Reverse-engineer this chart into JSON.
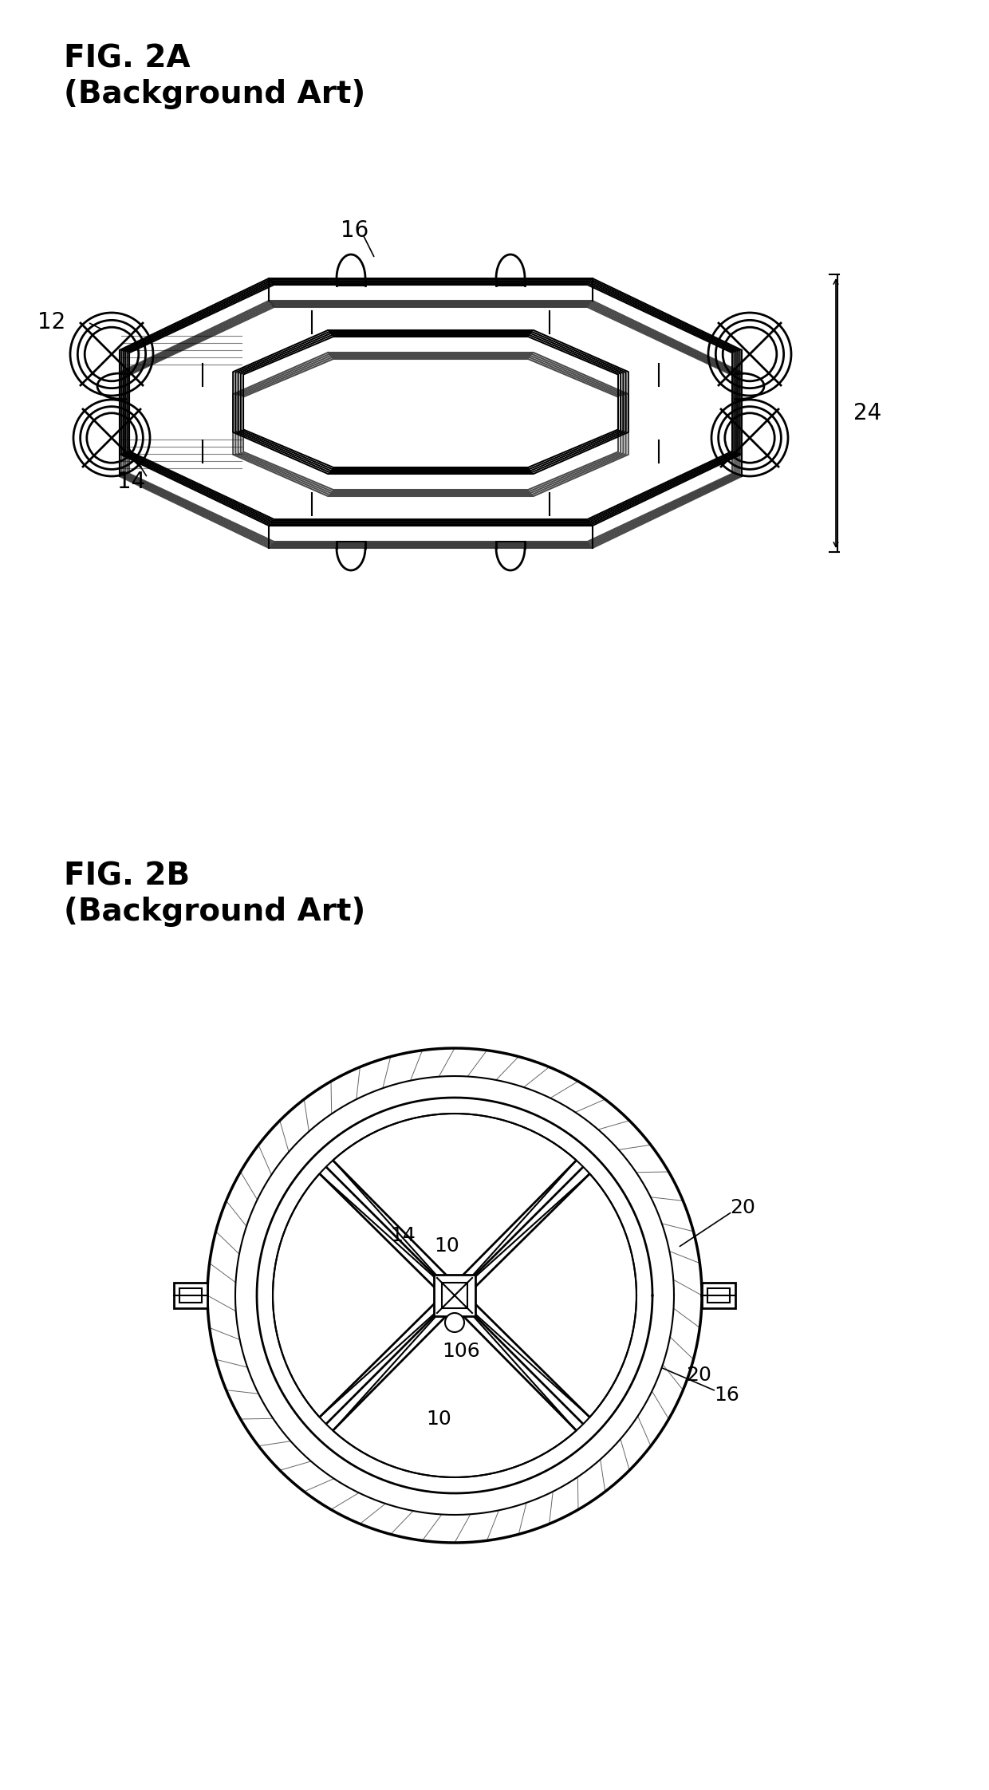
{
  "fig_title_2a": "FIG. 2A",
  "fig_subtitle_2a": "(Background Art)",
  "fig_title_2b": "FIG. 2B",
  "fig_subtitle_2b": "(Background Art)",
  "label_12": "12",
  "label_14": "14",
  "label_16": "16",
  "label_24": "24",
  "label_10a": "10",
  "label_10b": "10",
  "label_20a": "20",
  "label_20b": "20",
  "label_106": "106",
  "label_16b": "16",
  "bg_color": "#ffffff",
  "line_color": "#000000",
  "title_fontsize": 28,
  "label_fontsize": 20
}
